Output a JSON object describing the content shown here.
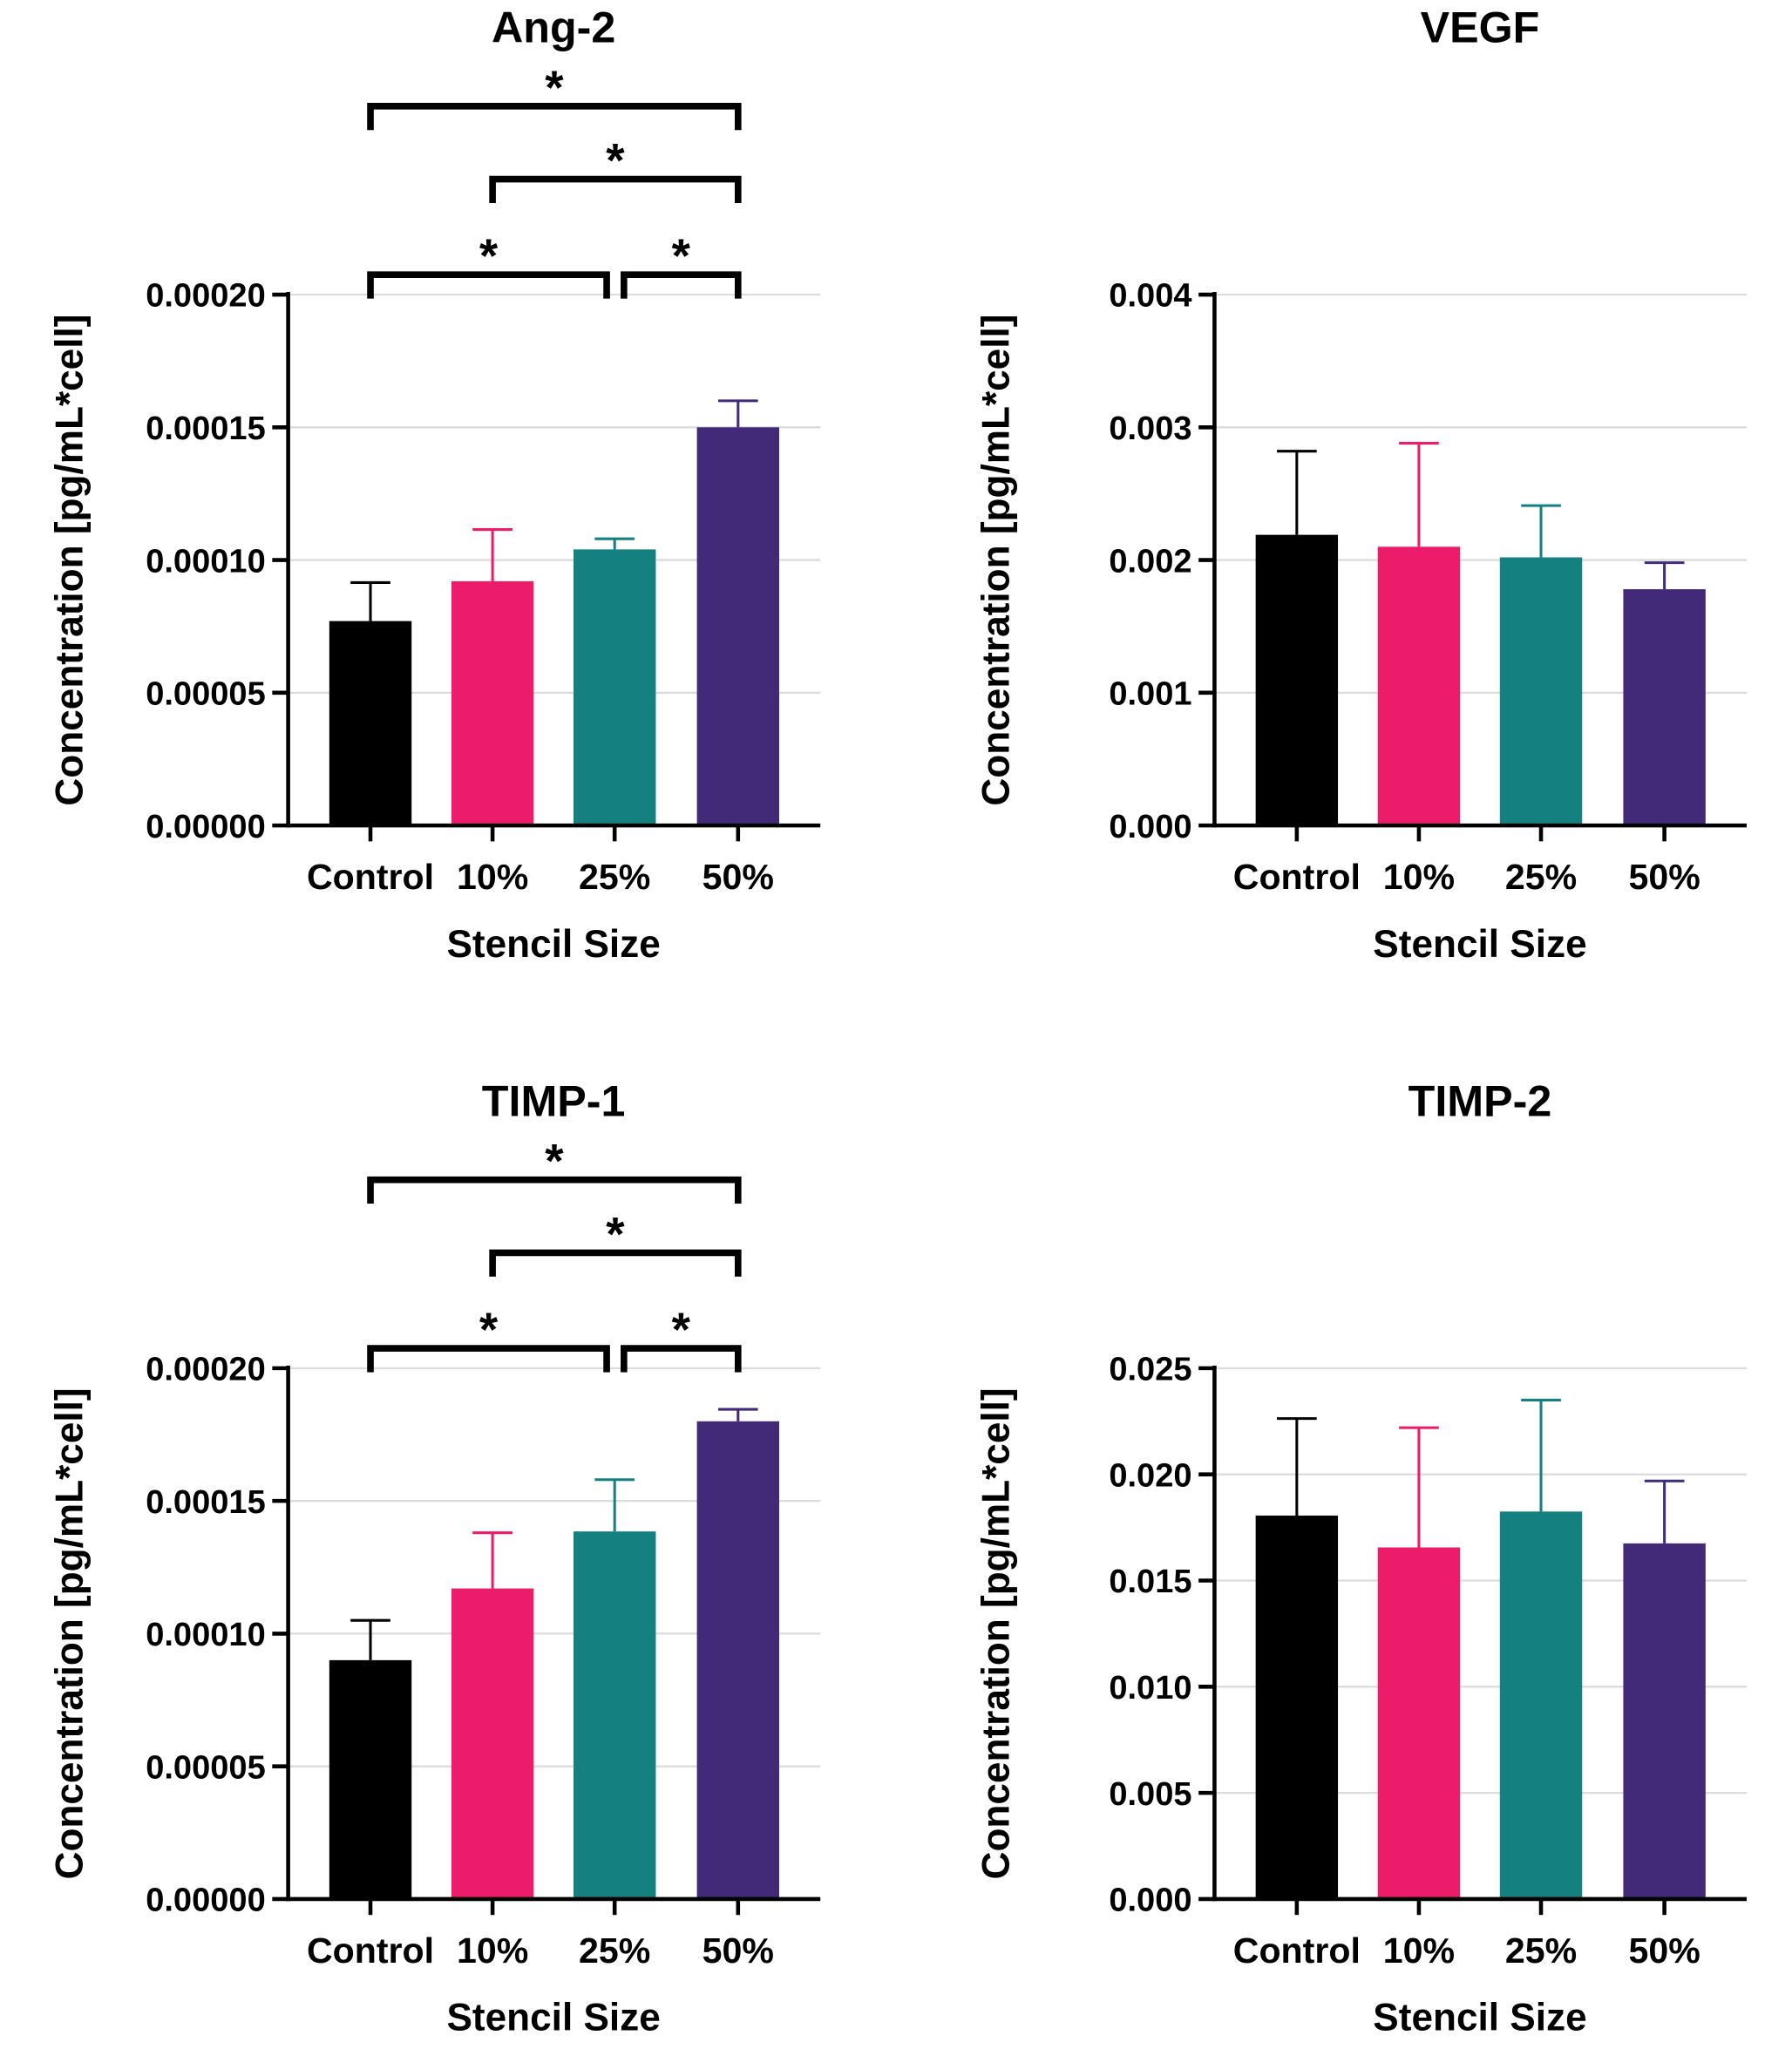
{
  "chart_data": [
    {
      "type": "bar",
      "title": "Ang-2",
      "xlabel": "Stencil Size",
      "ylabel": "Concentration [pg/mL*cell]",
      "categories": [
        "Control",
        "10%",
        "25%",
        "50%"
      ],
      "values": [
        7.7e-05,
        9.2e-05,
        0.000104,
        0.00015
      ],
      "errors_upper": [
        9.15e-05,
        0.0001115,
        0.000108,
        0.00016
      ],
      "ylim": [
        0,
        0.0002
      ],
      "yticks": [
        "0.00000",
        "0.00005",
        "0.00010",
        "0.00015",
        "0.00020"
      ],
      "grid": true,
      "significance": [
        {
          "from": 0,
          "to": 3,
          "label": "*",
          "level": 3
        },
        {
          "from": 1,
          "to": 3,
          "label": "*",
          "level": 2
        },
        {
          "from": 0,
          "to": 2,
          "label": "*",
          "level": 1
        },
        {
          "from": 2,
          "to": 3,
          "label": "*",
          "level": 1
        }
      ]
    },
    {
      "type": "bar",
      "title": "VEGF",
      "xlabel": "Stencil Size",
      "ylabel": "Concentration [pg/mL*cell]",
      "categories": [
        "Control",
        "10%",
        "25%",
        "50%"
      ],
      "values": [
        0.00219,
        0.0021,
        0.00202,
        0.00178
      ],
      "errors_upper": [
        0.00282,
        0.00288,
        0.00241,
        0.00198
      ],
      "ylim": [
        0,
        0.004
      ],
      "yticks": [
        "0.000",
        "0.001",
        "0.002",
        "0.003",
        "0.004"
      ],
      "grid": true,
      "significance": []
    },
    {
      "type": "bar",
      "title": "TIMP-1",
      "xlabel": "Stencil Size",
      "ylabel": "Concentration [pg/mL*cell]",
      "categories": [
        "Control",
        "10%",
        "25%",
        "50%"
      ],
      "values": [
        9e-05,
        0.000117,
        0.0001385,
        0.00018
      ],
      "errors_upper": [
        0.000105,
        0.000138,
        0.000158,
        0.0001845
      ],
      "ylim": [
        0,
        0.0002
      ],
      "yticks": [
        "0.00000",
        "0.00005",
        "0.00010",
        "0.00015",
        "0.00020"
      ],
      "grid": true,
      "significance": [
        {
          "from": 0,
          "to": 3,
          "label": "*",
          "level": 3
        },
        {
          "from": 1,
          "to": 3,
          "label": "*",
          "level": 2
        },
        {
          "from": 0,
          "to": 2,
          "label": "*",
          "level": 1
        },
        {
          "from": 2,
          "to": 3,
          "label": "*",
          "level": 1
        }
      ]
    },
    {
      "type": "bar",
      "title": "TIMP-2",
      "xlabel": "Stencil Size",
      "ylabel": "Concentration [pg/mL*cell]",
      "categories": [
        "Control",
        "10%",
        "25%",
        "50%"
      ],
      "values": [
        0.01806,
        0.01656,
        0.01825,
        0.01675
      ],
      "errors_upper": [
        0.02263,
        0.0222,
        0.0235,
        0.01969
      ],
      "ylim": [
        0,
        0.025
      ],
      "yticks": [
        "0.000",
        "0.005",
        "0.010",
        "0.015",
        "0.020",
        "0.025"
      ],
      "grid": true,
      "significance": []
    }
  ],
  "colors": [
    "#000000",
    "#EC1C6A",
    "#148080",
    "#432A78"
  ]
}
